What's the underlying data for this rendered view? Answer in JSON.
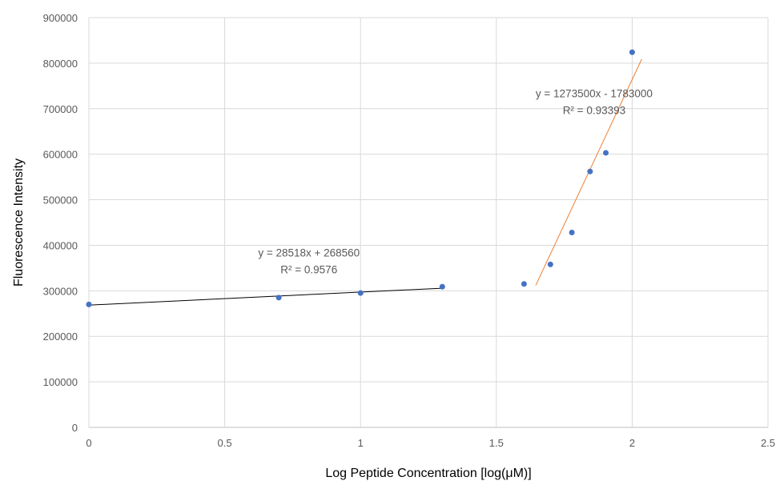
{
  "chart_data": {
    "type": "scatter",
    "xlabel": "Log Peptide Concentration [log(μM)]",
    "ylabel": "Fluorescence Intensity",
    "xlim": [
      0,
      2.5
    ],
    "ylim": [
      0,
      900000
    ],
    "x_ticks": [
      "0",
      "0.5",
      "1",
      "1.5",
      "2",
      "2.5"
    ],
    "y_ticks": [
      "0",
      "100000",
      "200000",
      "300000",
      "400000",
      "500000",
      "600000",
      "700000",
      "800000",
      "900000"
    ],
    "grid": true,
    "point_color": "#4472c4",
    "points": [
      {
        "x": 0,
        "y": 270000
      },
      {
        "x": 0.699,
        "y": 285000
      },
      {
        "x": 1.0,
        "y": 295000
      },
      {
        "x": 1.301,
        "y": 309000
      },
      {
        "x": 1.602,
        "y": 315000
      },
      {
        "x": 1.699,
        "y": 358000
      },
      {
        "x": 1.778,
        "y": 428000
      },
      {
        "x": 1.845,
        "y": 562000
      },
      {
        "x": 1.903,
        "y": 603000
      },
      {
        "x": 2.0,
        "y": 824000
      }
    ],
    "trendlines": [
      {
        "slope": 28518,
        "intercept": 268560,
        "x_range": [
          0,
          1.301
        ],
        "color": "#000000",
        "equation": "y = 28518x + 268560",
        "r2": "R² = 0.9576"
      },
      {
        "slope": 1273500,
        "intercept": -1783000,
        "x_range": [
          1.645,
          2.035
        ],
        "color": "#ed7d31",
        "equation": "y = 1273500x - 1783000",
        "r2": "R² = 0.93393"
      }
    ]
  }
}
